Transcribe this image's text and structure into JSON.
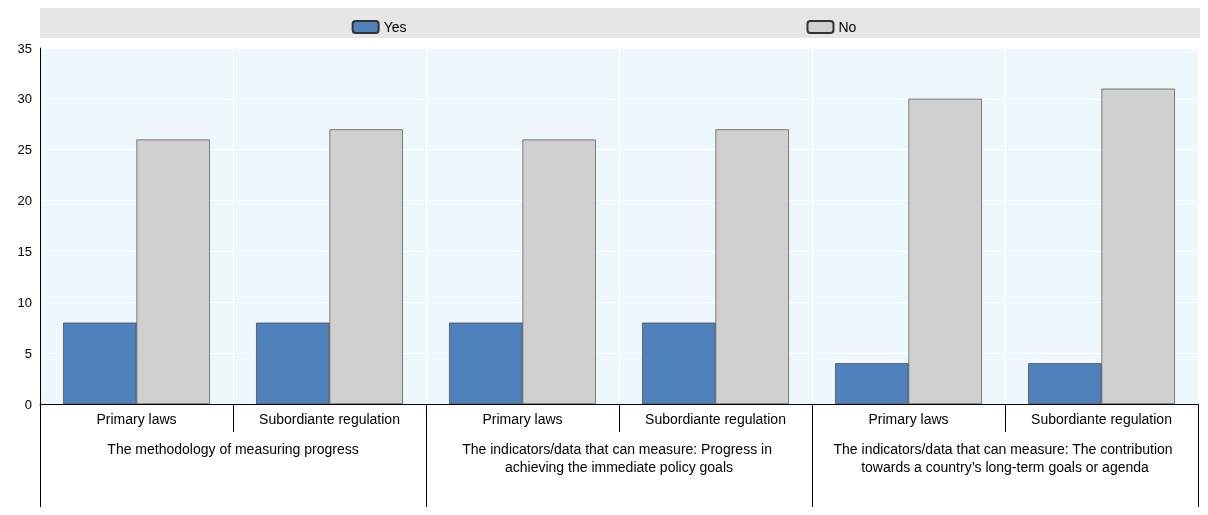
{
  "chart_data": {
    "type": "bar",
    "categories": [
      "Primary laws",
      "Subordiante regulation",
      "Primary laws",
      "Subordiante regulation",
      "Primary laws",
      "Subordiante regulation"
    ],
    "annotations": [
      "The methodology of measuring progress",
      "The indicators/data that can measure: Progress in achieving the immediate policy goals",
      "The indicators/data that can measure: The contribution towards a country’s long-term goals or agenda"
    ],
    "series": [
      {
        "name": "Yes",
        "color": "#4f81bd",
        "values": [
          8,
          8,
          8,
          8,
          4,
          4
        ]
      },
      {
        "name": "No",
        "color": "#d0d0d0",
        "values": [
          26,
          27,
          26,
          27,
          30,
          31
        ]
      }
    ],
    "ylim": [
      0,
      35
    ],
    "yticks": [
      0,
      5,
      10,
      15,
      20,
      25,
      30,
      35
    ],
    "grid": "y",
    "legend": "top"
  }
}
